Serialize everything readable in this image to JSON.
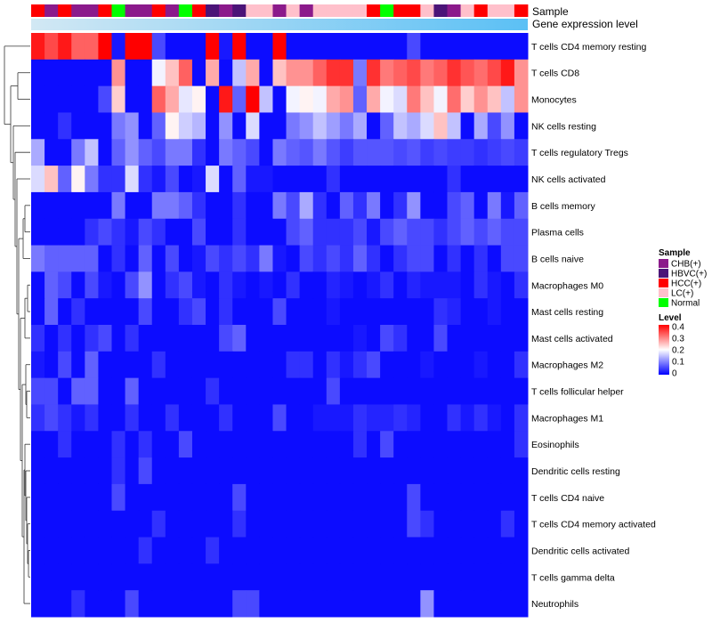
{
  "chart_data": {
    "type": "heatmap",
    "title": "",
    "annotation_labels": {
      "sample": "Sample",
      "gene_expression": "Gene expression level"
    },
    "rows": [
      "T cells CD4 memory resting",
      "T cells CD8",
      "Monocytes",
      "NK cells resting",
      "T cells regulatory  Tregs",
      "NK cells activated",
      "B cells memory",
      "Plasma cells",
      "B cells naive",
      "Macrophages M0",
      "Mast cells resting",
      "Mast cells activated",
      "Macrophages M2",
      "T cells follicular helper",
      "Macrophages M1",
      "Eosinophils",
      "Dendritic cells resting",
      "T cells CD4 naive",
      "T cells CD4 memory activated",
      "Dendritic cells activated",
      "T cells gamma delta",
      "Neutrophils"
    ],
    "sample_groups": [
      {
        "name": "CHB(+)",
        "color": "#8B1A8B"
      },
      {
        "name": "HBVC(+)",
        "color": "#4B1478"
      },
      {
        "name": "HCC(+)",
        "color": "#FF0000"
      },
      {
        "name": "LC(+)",
        "color": "#FFC0CB"
      },
      {
        "name": "Normal",
        "color": "#00FF00"
      }
    ],
    "sample_annotation": [
      "HCC(+)",
      "CHB(+)",
      "HCC(+)",
      "CHB(+)",
      "CHB(+)",
      "HCC(+)",
      "Normal",
      "CHB(+)",
      "CHB(+)",
      "HCC(+)",
      "CHB(+)",
      "Normal",
      "HCC(+)",
      "HBVC(+)",
      "CHB(+)",
      "HBVC(+)",
      "LC(+)",
      "LC(+)",
      "CHB(+)",
      "LC(+)",
      "CHB(+)",
      "LC(+)",
      "LC(+)",
      "LC(+)",
      "LC(+)",
      "HCC(+)",
      "Normal",
      "HCC(+)",
      "HCC(+)",
      "LC(+)",
      "HBVC(+)",
      "CHB(+)",
      "LC(+)",
      "HCC(+)",
      "LC(+)",
      "LC(+)",
      "HCC(+)"
    ],
    "expression_bar_colors": [
      "#D2E8F4",
      "#5BC0F5"
    ],
    "level_legend": {
      "title": "Level",
      "ticks": [
        "0.4",
        "0.3",
        "0.2",
        "0.1",
        "0"
      ],
      "range": [
        0,
        0.42
      ],
      "colors": [
        "#0000FF",
        "#FFFFFF",
        "#FF0000"
      ]
    },
    "values": [
      [
        0.4,
        0.36,
        0.4,
        0.34,
        0.34,
        0.42,
        0.02,
        0.42,
        0.42,
        0.06,
        0.01,
        0.01,
        0.01,
        0.42,
        0.02,
        0.42,
        0.01,
        0.01,
        0.42,
        0.01,
        0.01,
        0.01,
        0.01,
        0.01,
        0.01,
        0.01,
        0.01,
        0.01,
        0.06,
        0.01,
        0.01,
        0.01,
        0.01,
        0.01,
        0.01,
        0.01,
        0.01
      ],
      [
        0.01,
        0.01,
        0.01,
        0.01,
        0.01,
        0.01,
        0.3,
        0.01,
        0.01,
        0.2,
        0.26,
        0.34,
        0.01,
        0.28,
        0.01,
        0.16,
        0.28,
        0.01,
        0.26,
        0.3,
        0.3,
        0.34,
        0.38,
        0.38,
        0.1,
        0.38,
        0.32,
        0.34,
        0.36,
        0.32,
        0.34,
        0.38,
        0.35,
        0.33,
        0.36,
        0.4,
        0.3
      ],
      [
        0.01,
        0.01,
        0.01,
        0.01,
        0.01,
        0.06,
        0.25,
        0.01,
        0.01,
        0.34,
        0.28,
        0.19,
        0.22,
        0.01,
        0.4,
        0.08,
        0.42,
        0.16,
        0.01,
        0.2,
        0.22,
        0.2,
        0.28,
        0.3,
        0.08,
        0.28,
        0.2,
        0.18,
        0.32,
        0.26,
        0.2,
        0.33,
        0.25,
        0.3,
        0.26,
        0.16,
        0.3
      ],
      [
        0.01,
        0.01,
        0.04,
        0.01,
        0.01,
        0.01,
        0.1,
        0.12,
        0.01,
        0.08,
        0.22,
        0.17,
        0.15,
        0.01,
        0.12,
        0.01,
        0.18,
        0.01,
        0.01,
        0.1,
        0.12,
        0.16,
        0.13,
        0.1,
        0.14,
        0.01,
        0.08,
        0.16,
        0.14,
        0.18,
        0.26,
        0.16,
        0.01,
        0.14,
        0.06,
        0.12,
        0.01
      ],
      [
        0.14,
        0.01,
        0.01,
        0.1,
        0.16,
        0.01,
        0.08,
        0.12,
        0.08,
        0.06,
        0.1,
        0.1,
        0.04,
        0.01,
        0.1,
        0.08,
        0.06,
        0.01,
        0.1,
        0.08,
        0.07,
        0.1,
        0.07,
        0.05,
        0.07,
        0.07,
        0.07,
        0.06,
        0.07,
        0.05,
        0.06,
        0.05,
        0.05,
        0.04,
        0.05,
        0.06,
        0.05
      ],
      [
        0.18,
        0.26,
        0.08,
        0.22,
        0.1,
        0.04,
        0.04,
        0.18,
        0.04,
        0.02,
        0.06,
        0.01,
        0.02,
        0.18,
        0.01,
        0.08,
        0.02,
        0.02,
        0.01,
        0.01,
        0.01,
        0.01,
        0.04,
        0.01,
        0.01,
        0.01,
        0.01,
        0.01,
        0.01,
        0.01,
        0.01,
        0.04,
        0.01,
        0.01,
        0.01,
        0.01,
        0.01
      ],
      [
        0.01,
        0.01,
        0.01,
        0.01,
        0.01,
        0.01,
        0.1,
        0.01,
        0.01,
        0.1,
        0.1,
        0.08,
        0.04,
        0.01,
        0.01,
        0.04,
        0.01,
        0.01,
        0.1,
        0.06,
        0.14,
        0.04,
        0.01,
        0.08,
        0.04,
        0.1,
        0.01,
        0.04,
        0.12,
        0.01,
        0.01,
        0.06,
        0.08,
        0.01,
        0.1,
        0.02,
        0.08
      ],
      [
        0.01,
        0.01,
        0.01,
        0.01,
        0.04,
        0.06,
        0.04,
        0.02,
        0.06,
        0.04,
        0.01,
        0.01,
        0.06,
        0.01,
        0.01,
        0.04,
        0.01,
        0.01,
        0.01,
        0.06,
        0.08,
        0.04,
        0.04,
        0.04,
        0.06,
        0.02,
        0.06,
        0.08,
        0.06,
        0.06,
        0.04,
        0.06,
        0.08,
        0.06,
        0.08,
        0.06,
        0.06
      ],
      [
        0.1,
        0.08,
        0.08,
        0.08,
        0.08,
        0.01,
        0.04,
        0.01,
        0.08,
        0.01,
        0.06,
        0.01,
        0.02,
        0.06,
        0.04,
        0.06,
        0.04,
        0.1,
        0.02,
        0.01,
        0.06,
        0.04,
        0.06,
        0.04,
        0.08,
        0.04,
        0.01,
        0.04,
        0.06,
        0.06,
        0.01,
        0.04,
        0.01,
        0.04,
        0.01,
        0.06,
        0.06
      ],
      [
        0.01,
        0.08,
        0.06,
        0.01,
        0.06,
        0.02,
        0.01,
        0.06,
        0.12,
        0.01,
        0.04,
        0.06,
        0.02,
        0.01,
        0.04,
        0.02,
        0.01,
        0.02,
        0.01,
        0.04,
        0.01,
        0.01,
        0.03,
        0.02,
        0.01,
        0.02,
        0.04,
        0.01,
        0.03,
        0.02,
        0.02,
        0.02,
        0.01,
        0.04,
        0.02,
        0.01,
        0.04
      ],
      [
        0.01,
        0.08,
        0.01,
        0.04,
        0.01,
        0.01,
        0.01,
        0.01,
        0.06,
        0.01,
        0.01,
        0.04,
        0.06,
        0.01,
        0.04,
        0.01,
        0.01,
        0.01,
        0.06,
        0.01,
        0.01,
        0.01,
        0.02,
        0.01,
        0.01,
        0.01,
        0.01,
        0.01,
        0.01,
        0.01,
        0.04,
        0.03,
        0.01,
        0.01,
        0.02,
        0.01,
        0.01
      ],
      [
        0.04,
        0.01,
        0.04,
        0.01,
        0.04,
        0.06,
        0.01,
        0.04,
        0.01,
        0.01,
        0.01,
        0.01,
        0.01,
        0.01,
        0.06,
        0.08,
        0.01,
        0.01,
        0.01,
        0.01,
        0.01,
        0.01,
        0.01,
        0.01,
        0.02,
        0.01,
        0.06,
        0.04,
        0.01,
        0.01,
        0.06,
        0.01,
        0.01,
        0.01,
        0.01,
        0.01,
        0.01
      ],
      [
        0.02,
        0.01,
        0.06,
        0.01,
        0.08,
        0.01,
        0.01,
        0.01,
        0.01,
        0.04,
        0.01,
        0.01,
        0.01,
        0.01,
        0.01,
        0.01,
        0.01,
        0.01,
        0.01,
        0.04,
        0.04,
        0.01,
        0.04,
        0.02,
        0.04,
        0.06,
        0.01,
        0.01,
        0.01,
        0.02,
        0.01,
        0.01,
        0.01,
        0.02,
        0.01,
        0.01,
        0.04
      ],
      [
        0.06,
        0.06,
        0.01,
        0.08,
        0.08,
        0.01,
        0.01,
        0.08,
        0.01,
        0.01,
        0.01,
        0.01,
        0.01,
        0.04,
        0.01,
        0.01,
        0.01,
        0.01,
        0.01,
        0.01,
        0.01,
        0.01,
        0.06,
        0.01,
        0.01,
        0.01,
        0.01,
        0.01,
        0.01,
        0.01,
        0.01,
        0.01,
        0.01,
        0.01,
        0.01,
        0.01,
        0.01
      ],
      [
        0.04,
        0.06,
        0.04,
        0.02,
        0.04,
        0.01,
        0.01,
        0.04,
        0.01,
        0.01,
        0.04,
        0.01,
        0.01,
        0.01,
        0.04,
        0.01,
        0.01,
        0.01,
        0.06,
        0.01,
        0.01,
        0.02,
        0.02,
        0.02,
        0.04,
        0.03,
        0.03,
        0.04,
        0.03,
        0.01,
        0.01,
        0.04,
        0.02,
        0.04,
        0.02,
        0.01,
        0.04
      ],
      [
        0.01,
        0.01,
        0.04,
        0.01,
        0.01,
        0.01,
        0.04,
        0.01,
        0.04,
        0.01,
        0.01,
        0.06,
        0.01,
        0.01,
        0.01,
        0.01,
        0.01,
        0.01,
        0.01,
        0.01,
        0.01,
        0.01,
        0.01,
        0.01,
        0.04,
        0.01,
        0.06,
        0.01,
        0.01,
        0.01,
        0.01,
        0.01,
        0.01,
        0.01,
        0.01,
        0.01,
        0.04
      ],
      [
        0.01,
        0.01,
        0.01,
        0.01,
        0.01,
        0.01,
        0.04,
        0.01,
        0.06,
        0.01,
        0.01,
        0.01,
        0.01,
        0.01,
        0.01,
        0.01,
        0.01,
        0.01,
        0.01,
        0.01,
        0.01,
        0.01,
        0.01,
        0.01,
        0.01,
        0.01,
        0.01,
        0.01,
        0.01,
        0.01,
        0.01,
        0.01,
        0.01,
        0.01,
        0.01,
        0.01,
        0.01
      ],
      [
        0.01,
        0.01,
        0.01,
        0.01,
        0.01,
        0.01,
        0.06,
        0.01,
        0.01,
        0.01,
        0.01,
        0.01,
        0.01,
        0.01,
        0.01,
        0.06,
        0.01,
        0.01,
        0.01,
        0.01,
        0.01,
        0.01,
        0.01,
        0.01,
        0.01,
        0.01,
        0.01,
        0.01,
        0.06,
        0.01,
        0.01,
        0.01,
        0.01,
        0.01,
        0.01,
        0.01,
        0.01
      ],
      [
        0.01,
        0.01,
        0.01,
        0.01,
        0.01,
        0.01,
        0.01,
        0.01,
        0.01,
        0.04,
        0.01,
        0.01,
        0.01,
        0.01,
        0.01,
        0.04,
        0.01,
        0.01,
        0.01,
        0.01,
        0.01,
        0.01,
        0.01,
        0.01,
        0.01,
        0.01,
        0.01,
        0.01,
        0.06,
        0.04,
        0.01,
        0.01,
        0.01,
        0.01,
        0.01,
        0.04,
        0.01
      ],
      [
        0.01,
        0.01,
        0.01,
        0.01,
        0.01,
        0.01,
        0.01,
        0.01,
        0.04,
        0.01,
        0.01,
        0.01,
        0.01,
        0.04,
        0.01,
        0.01,
        0.01,
        0.01,
        0.01,
        0.01,
        0.01,
        0.01,
        0.01,
        0.01,
        0.01,
        0.01,
        0.01,
        0.01,
        0.01,
        0.01,
        0.01,
        0.01,
        0.01,
        0.01,
        0.01,
        0.01,
        0.01
      ],
      [
        0.01,
        0.01,
        0.01,
        0.01,
        0.01,
        0.01,
        0.01,
        0.01,
        0.01,
        0.01,
        0.01,
        0.01,
        0.01,
        0.01,
        0.01,
        0.01,
        0.01,
        0.01,
        0.01,
        0.01,
        0.01,
        0.01,
        0.01,
        0.01,
        0.01,
        0.01,
        0.01,
        0.01,
        0.01,
        0.01,
        0.01,
        0.01,
        0.01,
        0.01,
        0.01,
        0.01,
        0.01
      ],
      [
        0.01,
        0.01,
        0.01,
        0.04,
        0.01,
        0.01,
        0.01,
        0.06,
        0.01,
        0.01,
        0.01,
        0.01,
        0.01,
        0.01,
        0.01,
        0.06,
        0.06,
        0.01,
        0.01,
        0.01,
        0.01,
        0.01,
        0.01,
        0.01,
        0.01,
        0.01,
        0.01,
        0.01,
        0.01,
        0.12,
        0.01,
        0.01,
        0.01,
        0.01,
        0.01,
        0.01,
        0.01
      ]
    ]
  }
}
